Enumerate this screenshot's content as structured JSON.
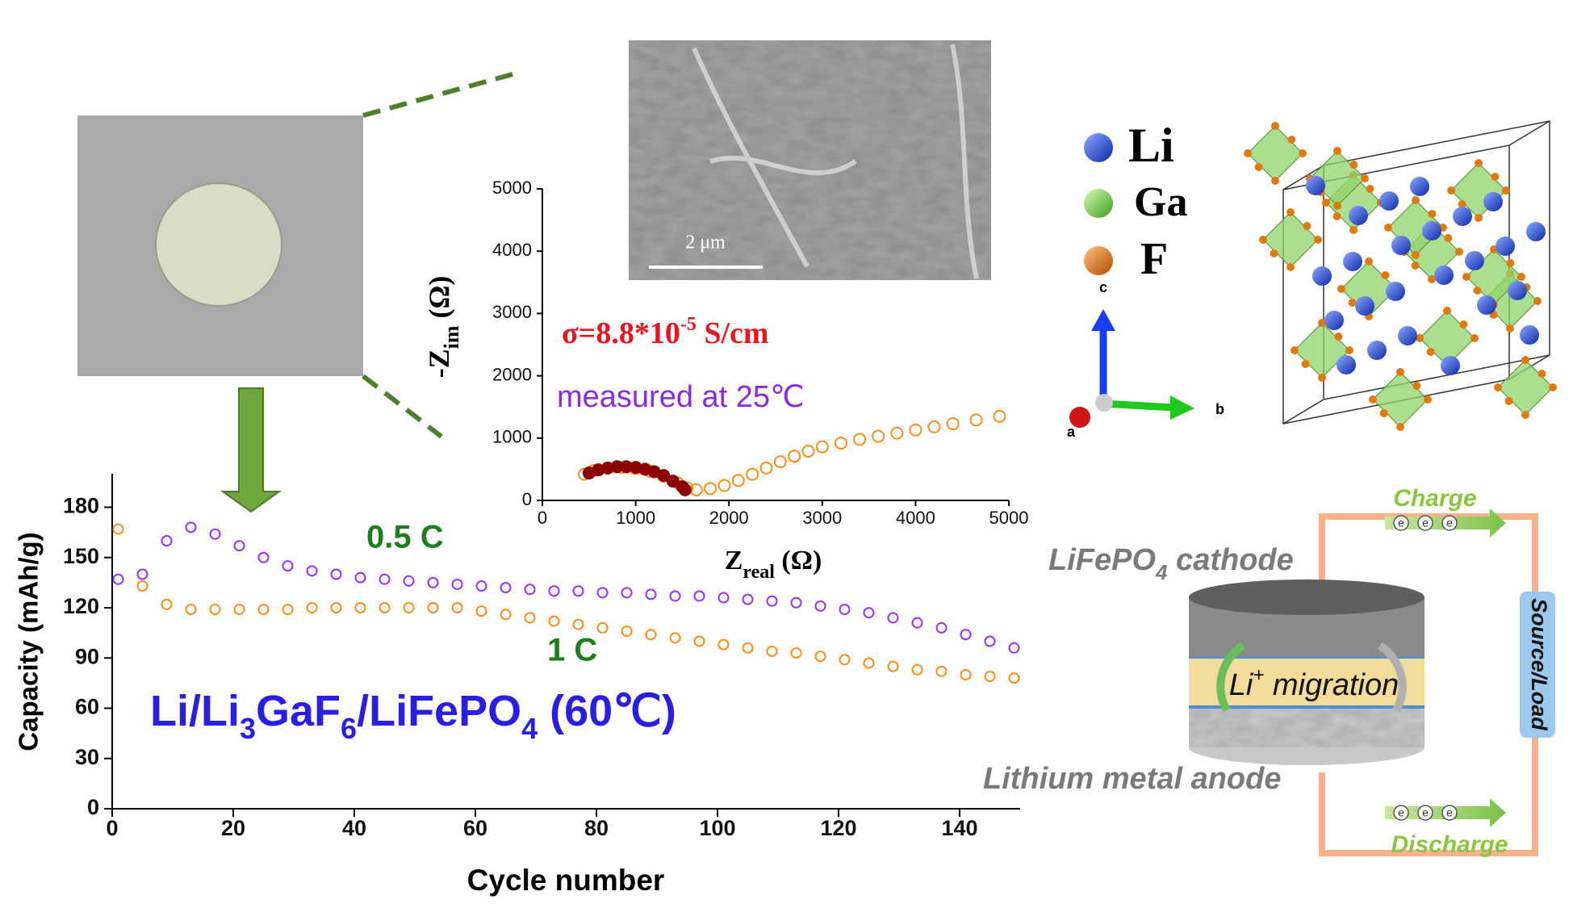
{
  "chart_data": [
    {
      "type": "scatter",
      "x_label": "Cycle number",
      "y_label": "Capacity (mAh/g)",
      "x": [
        1,
        5,
        9,
        13,
        17,
        21,
        25,
        29,
        33,
        37,
        41,
        45,
        49,
        53,
        57,
        61,
        65,
        69,
        73,
        77,
        81,
        85,
        89,
        93,
        97,
        101,
        105,
        109,
        113,
        117,
        121,
        125,
        129,
        133,
        137,
        141,
        145,
        149
      ],
      "series": [
        {
          "name": "0.5 C",
          "color": "#9b30ff",
          "label_color": "#1e7d1e",
          "marker": "open-light",
          "values": [
            137,
            140,
            160,
            168,
            164,
            157,
            150,
            145,
            142,
            140,
            138,
            137,
            136,
            135,
            134,
            133,
            132,
            131,
            130,
            130,
            129,
            129,
            128,
            127,
            127,
            126,
            125,
            124,
            123,
            121,
            119,
            117,
            114,
            111,
            108,
            104,
            100,
            96
          ]
        },
        {
          "name": "1 C",
          "color": "#ff8c1a",
          "label_color": "#1e7d1e",
          "marker": "open-light",
          "values": [
            167,
            133,
            122,
            119,
            119,
            119,
            119,
            119,
            120,
            120,
            120,
            120,
            120,
            120,
            120,
            118,
            116,
            114,
            112,
            110,
            108,
            106,
            104,
            102,
            100,
            98,
            96,
            94,
            93,
            91,
            89,
            87,
            85,
            83,
            82,
            80,
            79,
            78
          ]
        }
      ],
      "xlim": [
        0,
        150
      ],
      "xticks": [
        0,
        20,
        40,
        60,
        80,
        100,
        120,
        140
      ],
      "ylim": [
        0,
        200
      ],
      "yticks": [
        0,
        30,
        60,
        90,
        120,
        150,
        180
      ],
      "annotation": {
        "parts": [
          "Li/Li",
          "3",
          "GaF",
          "6",
          "/LiFePO",
          "4",
          " (60℃)"
        ],
        "color": "#2a1fe0"
      }
    },
    {
      "type": "scatter",
      "x_label": [
        "Z",
        "real",
        " (Ω)"
      ],
      "y_label": [
        "-Z",
        "im",
        " (Ω)"
      ],
      "series": [
        {
          "color": "#ff8c1a",
          "marker": "open",
          "x": [
            450,
            550,
            700,
            850,
            1000,
            1150,
            1300,
            1450,
            1550,
            1650,
            1800,
            1950,
            2100,
            2250,
            2400,
            2550,
            2700,
            2850,
            3000,
            3200,
            3400,
            3600,
            3800,
            4000,
            4200,
            4400,
            4650,
            4900
          ],
          "values": [
            420,
            480,
            520,
            530,
            510,
            470,
            390,
            280,
            200,
            170,
            190,
            240,
            320,
            420,
            520,
            620,
            710,
            790,
            860,
            920,
            980,
            1030,
            1080,
            1130,
            1180,
            1230,
            1290,
            1350
          ]
        },
        {
          "color": "#8b0000",
          "marker": "filled",
          "x": [
            500,
            600,
            700,
            800,
            900,
            1000,
            1100,
            1200,
            1300,
            1400,
            1500,
            1530
          ],
          "values": [
            440,
            490,
            520,
            540,
            540,
            530,
            500,
            460,
            400,
            310,
            220,
            170
          ]
        }
      ],
      "xlim": [
        0,
        5000
      ],
      "xticks": [
        0,
        1000,
        2000,
        3000,
        4000,
        5000
      ],
      "ylim": [
        0,
        5000
      ],
      "yticks": [
        0,
        1000,
        2000,
        3000,
        4000,
        5000
      ],
      "conductivity": {
        "parts": [
          "σ=8.8*10",
          "-5",
          " S/cm"
        ],
        "color": "#e8141e"
      },
      "condition": {
        "text": "measured at 25℃",
        "color": "#8a2be2"
      }
    }
  ],
  "sem_scale": "2 μm",
  "elements": [
    "Li",
    "Ga",
    "F"
  ],
  "crystal_axes": [
    "c",
    "b",
    "a"
  ],
  "battery": {
    "charge": "Charge",
    "discharge": "Discharge",
    "cathode": [
      "LiFePO",
      "4",
      " cathode"
    ],
    "anode": "Lithium metal anode",
    "migration": [
      "Li",
      "+",
      " migration"
    ],
    "load": "Source/Load",
    "electron": "e"
  }
}
